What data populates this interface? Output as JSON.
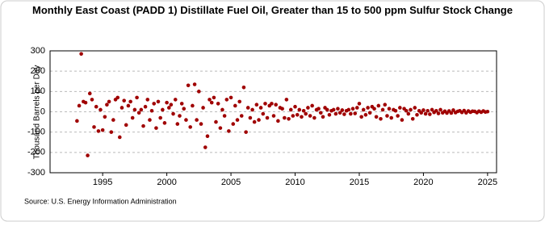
{
  "chart_data": {
    "type": "scatter",
    "title": "Monthly East Coast (PADD 1) Distillate Fuel Oil, Greater than 15 to 500 ppm Sulfur Stock Change",
    "y_label": "Thousand Barrels per Day",
    "source": "Source: U.S. Energy Information Administration",
    "color": "#a00000",
    "xlim": [
      1990.9,
      2025.7
    ],
    "xticks": [
      1995,
      2000,
      2005,
      2010,
      2015,
      2020,
      2025
    ],
    "ylim": [
      -300,
      300
    ],
    "yticks": [
      -300,
      -200,
      -100,
      0,
      100,
      200,
      300
    ],
    "grid": true,
    "x": [
      1993.0,
      1993.17,
      1993.33,
      1993.5,
      1993.67,
      1993.83,
      1994.0,
      1994.17,
      1994.33,
      1994.5,
      1994.67,
      1994.83,
      1995.0,
      1995.17,
      1995.33,
      1995.5,
      1995.67,
      1995.83,
      1996.0,
      1996.17,
      1996.33,
      1996.5,
      1996.67,
      1996.83,
      1997.0,
      1997.17,
      1997.33,
      1997.5,
      1997.67,
      1997.83,
      1998.0,
      1998.17,
      1998.33,
      1998.5,
      1998.67,
      1998.83,
      1999.0,
      1999.17,
      1999.33,
      1999.5,
      1999.67,
      1999.83,
      2000.0,
      2000.17,
      2000.33,
      2000.5,
      2000.67,
      2000.83,
      2001.0,
      2001.17,
      2001.33,
      2001.5,
      2001.67,
      2001.83,
      2002.0,
      2002.17,
      2002.33,
      2002.5,
      2002.67,
      2002.83,
      2003.0,
      2003.17,
      2003.33,
      2003.5,
      2003.67,
      2003.83,
      2004.0,
      2004.17,
      2004.33,
      2004.5,
      2004.67,
      2004.83,
      2005.0,
      2005.17,
      2005.33,
      2005.5,
      2005.67,
      2005.83,
      2006.0,
      2006.17,
      2006.33,
      2006.5,
      2006.67,
      2006.83,
      2007.0,
      2007.17,
      2007.33,
      2007.5,
      2007.67,
      2007.83,
      2008.0,
      2008.17,
      2008.33,
      2008.5,
      2008.67,
      2008.83,
      2009.0,
      2009.17,
      2009.33,
      2009.5,
      2009.67,
      2009.83,
      2010.0,
      2010.17,
      2010.33,
      2010.5,
      2010.67,
      2010.83,
      2011.0,
      2011.17,
      2011.33,
      2011.5,
      2011.67,
      2011.83,
      2012.0,
      2012.17,
      2012.33,
      2012.5,
      2012.67,
      2012.83,
      2013.0,
      2013.17,
      2013.33,
      2013.5,
      2013.67,
      2013.83,
      2014.0,
      2014.17,
      2014.33,
      2014.5,
      2014.67,
      2014.83,
      2015.0,
      2015.17,
      2015.33,
      2015.5,
      2015.67,
      2015.83,
      2016.0,
      2016.17,
      2016.33,
      2016.5,
      2016.67,
      2016.83,
      2017.0,
      2017.17,
      2017.33,
      2017.5,
      2017.67,
      2017.83,
      2018.0,
      2018.17,
      2018.33,
      2018.5,
      2018.67,
      2018.83,
      2019.0,
      2019.17,
      2019.33,
      2019.5,
      2019.67,
      2019.83,
      2020.0,
      2020.17,
      2020.33,
      2020.5,
      2020.67,
      2020.83,
      2021.0,
      2021.17,
      2021.33,
      2021.5,
      2021.67,
      2021.83,
      2022.0,
      2022.17,
      2022.33,
      2022.5,
      2022.67,
      2022.83,
      2023.0,
      2023.17,
      2023.33,
      2023.5,
      2023.67,
      2023.83,
      2024.0,
      2024.17,
      2024.33,
      2024.5,
      2024.67,
      2024.83,
      2025.0
    ],
    "values": [
      -45,
      30,
      285,
      50,
      45,
      -215,
      90,
      60,
      -75,
      25,
      -95,
      10,
      -90,
      -25,
      35,
      50,
      -100,
      -40,
      60,
      70,
      -125,
      20,
      55,
      -65,
      30,
      50,
      -30,
      10,
      70,
      -5,
      10,
      -70,
      25,
      60,
      -40,
      5,
      40,
      -80,
      50,
      -30,
      10,
      -55,
      45,
      20,
      35,
      -10,
      60,
      -60,
      -20,
      40,
      15,
      -40,
      130,
      -75,
      30,
      135,
      -40,
      100,
      -60,
      20,
      -175,
      -120,
      60,
      45,
      70,
      -50,
      40,
      -80,
      10,
      -20,
      60,
      -95,
      70,
      -60,
      30,
      -40,
      50,
      -20,
      120,
      -100,
      20,
      -30,
      10,
      -50,
      35,
      -40,
      20,
      -10,
      40,
      -30,
      30,
      40,
      -20,
      35,
      -45,
      20,
      15,
      -30,
      60,
      -35,
      10,
      -20,
      25,
      -15,
      10,
      -25,
      5,
      -10,
      20,
      -20,
      30,
      -30,
      10,
      15,
      -5,
      -25,
      20,
      10,
      -15,
      5,
      10,
      -10,
      15,
      -5,
      8,
      -12,
      5,
      10,
      -10,
      15,
      -8,
      20,
      40,
      -25,
      10,
      -15,
      20,
      -5,
      25,
      15,
      -25,
      30,
      -35,
      10,
      35,
      -20,
      15,
      -30,
      10,
      5,
      -20,
      20,
      -40,
      15,
      5,
      -10,
      10,
      -35,
      20,
      -15,
      5,
      -5,
      8,
      -10,
      5,
      -12,
      10,
      -3,
      5,
      -8,
      10,
      -5,
      3,
      -6,
      4,
      -6,
      8,
      -4,
      2,
      5,
      -3,
      6,
      -5,
      4,
      -2,
      3,
      2,
      -4,
      3,
      -2,
      4,
      -1,
      1
    ]
  }
}
